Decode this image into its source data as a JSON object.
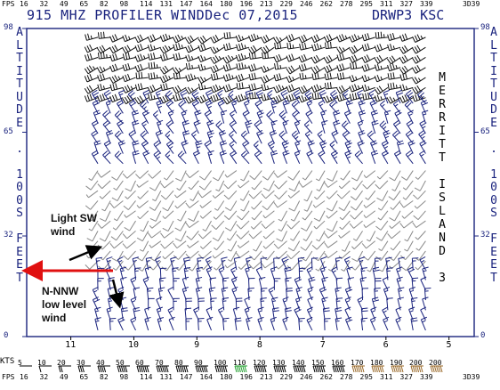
{
  "top_scale": {
    "lead": "FPS",
    "values": [
      "16",
      "32",
      "49",
      "65",
      "82",
      "98",
      "114",
      "131",
      "147",
      "164",
      "180",
      "196",
      "213",
      "229",
      "246",
      "262",
      "278",
      "295",
      "311",
      "327",
      "339"
    ],
    "tail": "3D39"
  },
  "header": {
    "title": "915 MHZ PROFILER WINDDec 07,2015",
    "station_id": "DRWP3 KSC"
  },
  "left_axis_label": "ALTITUDE . 100S FEET",
  "right_axis_label": "ALTITUDE . 100S FEET",
  "site_label": "MERRITT ISLAND 3",
  "annotations": {
    "light_sw": "Light SW\nwind",
    "nnw": "N-NNW\nlow level\nwind"
  },
  "legend": {
    "kts_label": "KTS",
    "values": [
      "5",
      "10",
      "20",
      "30",
      "40",
      "50",
      "60",
      "70",
      "80",
      "90",
      "100",
      "110",
      "120",
      "130",
      "140",
      "150",
      "160",
      "170",
      "180",
      "190",
      "200",
      "200"
    ]
  },
  "bottom_scale": {
    "lead": "FPS",
    "values": [
      "16",
      "32",
      "49",
      "65",
      "82",
      "98",
      "114",
      "131",
      "147",
      "164",
      "180",
      "196",
      "213",
      "229",
      "246",
      "262",
      "278",
      "295",
      "311",
      "327",
      "339"
    ],
    "tail": "3D39"
  },
  "colors": {
    "axis": "#1a237e",
    "barb_upper": "#111111",
    "barb_mid": "#1a237e",
    "barb_gray": "#8a8a8a",
    "arrow": "#e01010",
    "legend_green": "#1f9e2c",
    "legend_brown": "#9a6a2a"
  },
  "chart_data": {
    "type": "wind-barb time-height",
    "x_ticks": [
      "11",
      "10",
      "9",
      "8",
      "7",
      "6",
      "5"
    ],
    "y_ticks": [
      "98",
      "65",
      "32",
      "0"
    ],
    "xlim": [
      4.6,
      11.7
    ],
    "ylim": [
      0,
      98
    ],
    "x_axis_order": "descending left-to-right",
    "times": [
      10.5,
      10.3,
      10.1,
      9.9,
      9.7,
      9.5,
      9.3,
      9.1,
      8.9,
      8.7,
      8.5,
      8.3,
      8.1,
      7.9,
      7.7,
      7.5,
      7.3,
      7.1,
      6.9,
      6.7,
      6.5,
      6.3,
      6.1,
      5.9,
      5.7,
      5.5,
      5.3
    ],
    "layers": [
      {
        "name": "upper",
        "alt_range": [
          76,
          98
        ],
        "dir_deg": 250,
        "speed_kt": 30,
        "color": "barb_upper"
      },
      {
        "name": "mid",
        "alt_range": [
          55,
          75
        ],
        "dir_deg": 330,
        "speed_kt": 20,
        "color": "barb_mid"
      },
      {
        "name": "sw-light",
        "alt_range": [
          24,
          54
        ],
        "dir_deg": 220,
        "speed_kt": 8,
        "color": "barb_gray"
      },
      {
        "name": "nnw-low",
        "alt_range": [
          2,
          22
        ],
        "dir_deg": 345,
        "speed_kt": 15,
        "color": "barb_mid"
      }
    ]
  }
}
